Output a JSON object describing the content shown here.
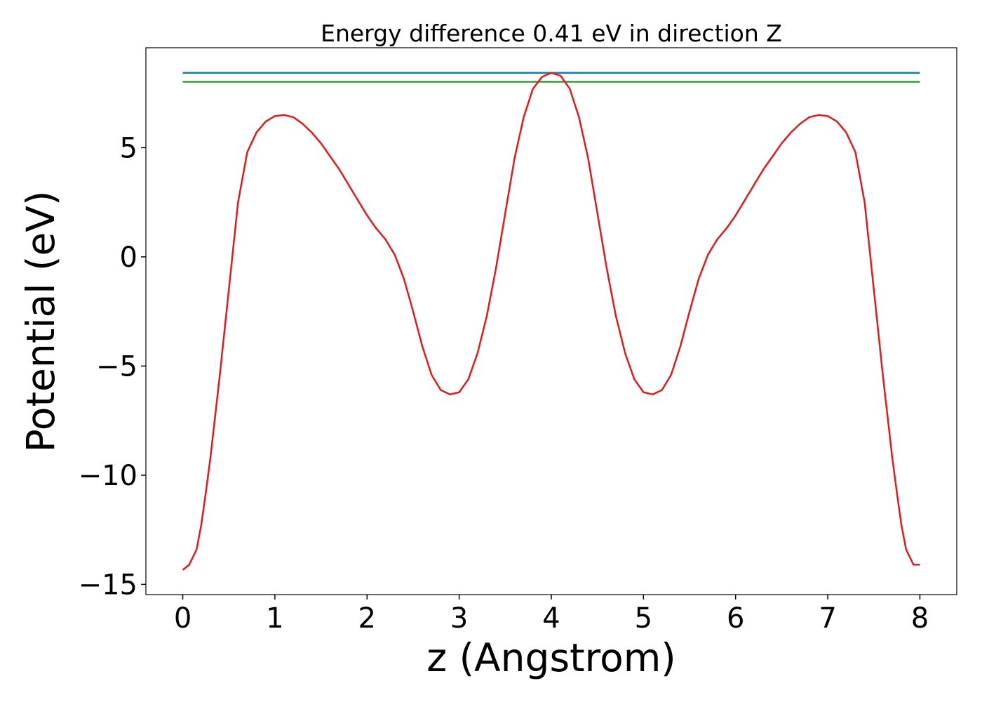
{
  "chart_data": {
    "type": "line",
    "title": "Energy difference 0.41 eV in direction Z",
    "xlabel": "z (Angstrom)",
    "ylabel": "Potential (eV)",
    "xlim": [
      -0.4,
      8.4
    ],
    "ylim": [
      -15.47,
      9.58
    ],
    "xticks": [
      0,
      1,
      2,
      3,
      4,
      5,
      6,
      7,
      8
    ],
    "yticks": [
      {
        "value": -15,
        "label": "−15"
      },
      {
        "value": -10,
        "label": "−10"
      },
      {
        "value": -5,
        "label": "−5"
      },
      0,
      5
    ],
    "series": [
      {
        "color": "#1f77b4",
        "x": [
          0,
          8
        ],
        "values": [
          8.43,
          8.43
        ]
      },
      {
        "color": "#2ca02c",
        "x": [
          0,
          8
        ],
        "values": [
          8.02,
          8.02
        ]
      },
      {
        "color": "#e31a1c",
        "x": [
          0,
          0.07,
          0.15,
          0.2,
          0.25,
          0.3,
          0.4,
          0.5,
          0.6,
          0.7,
          0.8,
          0.9,
          1.0,
          1.1,
          1.2,
          1.3,
          1.4,
          1.5,
          1.6,
          1.7,
          1.8,
          1.9,
          2.0,
          2.1,
          2.2,
          2.3,
          2.4,
          2.5,
          2.6,
          2.7,
          2.8,
          2.9,
          3.0,
          3.1,
          3.2,
          3.3,
          3.4,
          3.5,
          3.6,
          3.7,
          3.8,
          3.9,
          4.0,
          4.1,
          4.2,
          4.3,
          4.4,
          4.5,
          4.6,
          4.7,
          4.8,
          4.9,
          5.0,
          5.1,
          5.2,
          5.3,
          5.4,
          5.5,
          5.6,
          5.7,
          5.8,
          5.9,
          6.0,
          6.1,
          6.2,
          6.3,
          6.4,
          6.5,
          6.6,
          6.7,
          6.8,
          6.9,
          7.0,
          7.1,
          7.2,
          7.3,
          7.4,
          7.5,
          7.6,
          7.7,
          7.75,
          7.8,
          7.85,
          7.93,
          8.0
        ],
        "values": [
          -14.34,
          -14.1,
          -13.4,
          -12.3,
          -10.8,
          -9.2,
          -5.5,
          -1.5,
          2.5,
          4.8,
          5.7,
          6.2,
          6.45,
          6.5,
          6.4,
          6.1,
          5.7,
          5.2,
          4.6,
          4.0,
          3.3,
          2.6,
          1.9,
          1.3,
          0.8,
          0.1,
          -1.0,
          -2.5,
          -4.1,
          -5.4,
          -6.1,
          -6.3,
          -6.2,
          -5.6,
          -4.4,
          -2.7,
          -0.5,
          2.0,
          4.5,
          6.4,
          7.7,
          8.25,
          8.43,
          8.3,
          7.7,
          6.4,
          4.5,
          2.0,
          -0.5,
          -2.7,
          -4.4,
          -5.6,
          -6.2,
          -6.3,
          -6.1,
          -5.4,
          -4.1,
          -2.5,
          -1.0,
          0.1,
          0.8,
          1.3,
          1.9,
          2.6,
          3.3,
          4.0,
          4.6,
          5.2,
          5.7,
          6.1,
          6.4,
          6.5,
          6.45,
          6.2,
          5.7,
          4.8,
          2.5,
          -1.5,
          -5.5,
          -9.2,
          -10.8,
          -12.3,
          -13.4,
          -14.1,
          -14.1
        ]
      }
    ]
  }
}
